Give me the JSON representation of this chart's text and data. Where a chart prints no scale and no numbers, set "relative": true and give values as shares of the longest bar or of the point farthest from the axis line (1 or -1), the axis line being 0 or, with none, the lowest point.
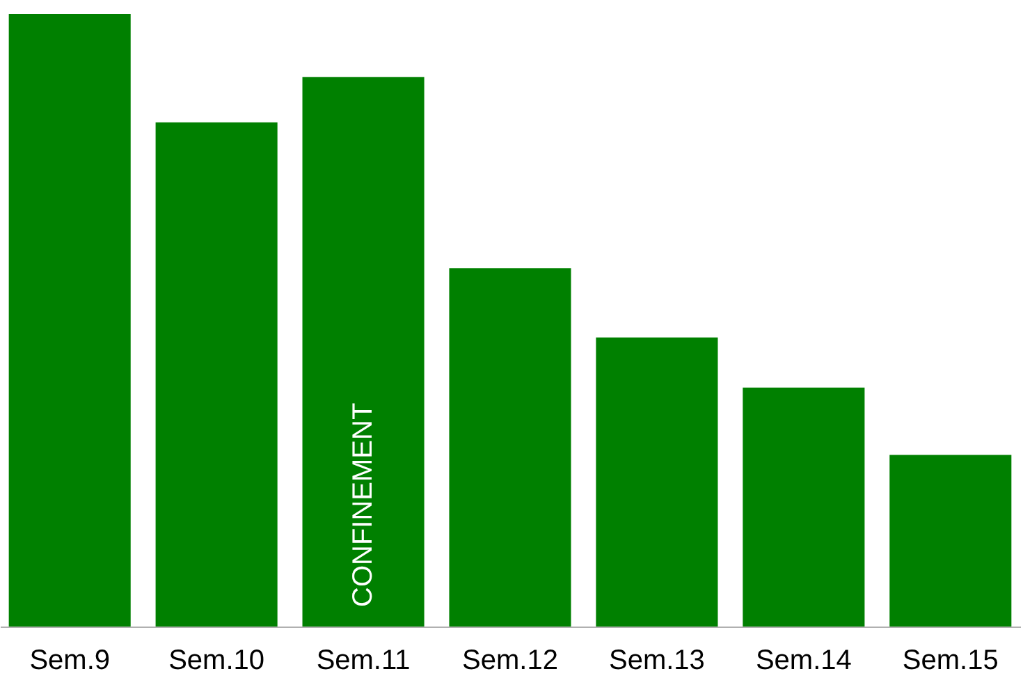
{
  "chart_data": {
    "type": "bar",
    "relative": true,
    "categories": [
      "Sem.9",
      "Sem.10",
      "Sem.11",
      "Sem.12",
      "Sem.13",
      "Sem.14",
      "Sem.15"
    ],
    "values": [
      1,
      0.823,
      0.897,
      0.585,
      0.472,
      0.39,
      0.28
    ],
    "color": "#008000",
    "annotations": [
      "CONFINEMENT"
    ],
    "grid": false
  }
}
